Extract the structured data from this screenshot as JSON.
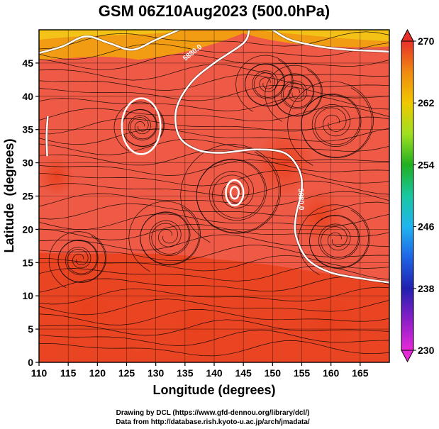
{
  "chart_data": {
    "type": "heatmap",
    "title": "GSM 06Z10Aug2023 (500.0hPa)",
    "xlabel": "Longitude (degrees)",
    "ylabel": "Latitude  (degrees)",
    "xlim": [
      110,
      170
    ],
    "ylim": [
      0,
      50
    ],
    "x_ticks": [
      110,
      115,
      120,
      125,
      130,
      135,
      140,
      145,
      150,
      155,
      160,
      165
    ],
    "y_ticks": [
      0,
      5,
      10,
      15,
      20,
      25,
      30,
      35,
      40,
      45
    ],
    "grid": true,
    "colorbar": {
      "ticks": [
        230,
        238,
        246,
        254,
        262,
        270
      ],
      "min": 230,
      "max": 270,
      "colors": {
        "230": "#e62ad8",
        "234": "#8a1ec8",
        "238": "#2020b0",
        "242": "#1e64e6",
        "246": "#20b4f0",
        "250": "#18c8a0",
        "254": "#20b020",
        "258": "#a0e020",
        "262": "#f0c800",
        "266": "#f08a10",
        "270": "#e8302a"
      }
    },
    "field_colors": {
      "main": "#ee5a45",
      "warm_band": "#e8421e",
      "cool_north": "#f0a010",
      "cool_north_edge": "#f4c818"
    },
    "contour_color": "#ffffff",
    "streamline_color": "#000000",
    "contour_labels": [
      "5880.0",
      "5880.0"
    ],
    "contours": [
      {
        "name": "north",
        "points": [
          [
            110,
            46.5
          ],
          [
            114,
            47.5
          ],
          [
            118,
            49
          ],
          [
            122,
            48
          ],
          [
            126,
            47
          ],
          [
            130,
            48.5
          ],
          [
            134,
            50
          ]
        ]
      },
      {
        "name": "northeast",
        "points": [
          [
            150,
            50
          ],
          [
            153,
            48.5
          ],
          [
            158,
            47.5
          ],
          [
            163,
            47
          ],
          [
            168,
            46.8
          ],
          [
            170,
            46.7
          ]
        ]
      },
      {
        "name": "subtropical-ridge",
        "points": [
          [
            146,
            50
          ],
          [
            145,
            48
          ],
          [
            140,
            45
          ],
          [
            136,
            42
          ],
          [
            133.5,
            38
          ],
          [
            134,
            34
          ],
          [
            137,
            32
          ],
          [
            141,
            31.5
          ],
          [
            147,
            32
          ],
          [
            152,
            31.5
          ],
          [
            154.5,
            29
          ],
          [
            155,
            26
          ],
          [
            154,
            22
          ],
          [
            154,
            19
          ],
          [
            156,
            15.5
          ],
          [
            160,
            13.5
          ],
          [
            166,
            12.5
          ],
          [
            170,
            12
          ]
        ]
      },
      {
        "name": "west-edge",
        "points": [
          [
            111.5,
            37
          ],
          [
            111.3,
            34
          ],
          [
            111.4,
            31
          ]
        ]
      }
    ],
    "closed_contours": [
      {
        "name": "low-northwest",
        "center": [
          127.5,
          35.5
        ],
        "rx": 3.3,
        "ry": 4.2
      },
      {
        "name": "high-central-outer",
        "center": [
          143.5,
          25.5
        ],
        "rx": 1.5,
        "ry": 1.9
      },
      {
        "name": "high-central-inner",
        "center": [
          143.5,
          25.5
        ],
        "rx": 0.7,
        "ry": 0.9
      }
    ],
    "vortices": [
      {
        "name": "v-nw-low",
        "center": [
          127.5,
          35.5
        ],
        "r": 3.5
      },
      {
        "name": "v-central-high",
        "center": [
          143.5,
          25.5
        ],
        "r": 7
      },
      {
        "name": "v-west-pacific",
        "center": [
          132,
          19
        ],
        "r": 5
      },
      {
        "name": "v-east-high",
        "center": [
          160.5,
          36
        ],
        "r": 6
      },
      {
        "name": "v-southeast",
        "center": [
          161,
          18.5
        ],
        "r": 5
      },
      {
        "name": "v-philippine-sea",
        "center": [
          117,
          15.5
        ],
        "r": 4
      },
      {
        "name": "v-north-east",
        "center": [
          154,
          40.5
        ],
        "r": 4
      },
      {
        "name": "v-japan-north",
        "center": [
          149,
          42
        ],
        "r": 4
      }
    ],
    "credits": [
      "Drawing by DCL (https://www.gfd-dennou.org/library/dcl/)",
      "Data from http://database.rish.kyoto-u.ac.jp/arch/jmadata/"
    ]
  }
}
